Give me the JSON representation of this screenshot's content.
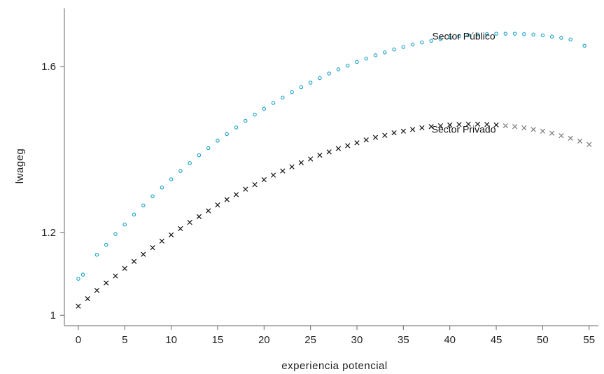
{
  "chart_data": {
    "type": "scatter",
    "title": "",
    "xlabel": "experiencia potencial",
    "ylabel": "lwageg",
    "xlim": [
      -1.5,
      56
    ],
    "ylim": [
      0.975,
      1.74
    ],
    "xticks": [
      0,
      5,
      10,
      15,
      20,
      25,
      30,
      35,
      40,
      45,
      50,
      55
    ],
    "yticks": [
      1,
      1.2,
      1.6
    ],
    "ytick_labels": [
      "1",
      "1.2",
      "1.6"
    ],
    "grid": false,
    "legend": "none",
    "annotations": [
      {
        "text": "Sector Público",
        "x": 41.5,
        "y": 1.665
      },
      {
        "text": "Sector Privado",
        "x": 41.5,
        "y": 1.44
      }
    ],
    "series": [
      {
        "marker": "circle",
        "color": "#1aa3c8",
        "x": [
          0,
          0.5,
          2,
          3,
          4,
          5,
          6,
          7,
          8,
          9,
          10,
          11,
          12,
          13,
          14,
          15,
          16,
          17,
          18,
          19,
          20,
          21,
          22,
          23,
          24,
          25,
          26,
          27,
          28,
          29,
          30,
          31,
          32,
          33,
          34,
          35,
          36,
          37,
          38,
          39,
          40,
          41,
          42,
          43,
          44,
          45,
          46,
          47,
          48,
          49,
          50,
          51,
          52,
          53,
          54.5
        ],
        "y": [
          1.088,
          1.098,
          1.146,
          1.17,
          1.196,
          1.219,
          1.243,
          1.265,
          1.287,
          1.308,
          1.328,
          1.348,
          1.367,
          1.386,
          1.403,
          1.421,
          1.437,
          1.453,
          1.469,
          1.484,
          1.498,
          1.512,
          1.525,
          1.538,
          1.55,
          1.561,
          1.572,
          1.583,
          1.593,
          1.602,
          1.611,
          1.619,
          1.627,
          1.634,
          1.641,
          1.647,
          1.653,
          1.658,
          1.662,
          1.666,
          1.67,
          1.673,
          1.675,
          1.677,
          1.678,
          1.679,
          1.679,
          1.679,
          1.678,
          1.677,
          1.675,
          1.672,
          1.669,
          1.665,
          1.65
        ]
      },
      {
        "marker": "x",
        "color": "#111111",
        "x": [
          0,
          1,
          2,
          3,
          4,
          5,
          6,
          7,
          8,
          9,
          10,
          11,
          12,
          13,
          14,
          15,
          16,
          17,
          18,
          19,
          20,
          21,
          22,
          23,
          24,
          25,
          26,
          27,
          28,
          29,
          30,
          31,
          32,
          33,
          34,
          35,
          36,
          37,
          38,
          39,
          40,
          41,
          42,
          43,
          44,
          45,
          46,
          47,
          48,
          49,
          50,
          51,
          52,
          53,
          54,
          55
        ],
        "y": [
          1.022,
          1.04,
          1.06,
          1.078,
          1.095,
          1.113,
          1.13,
          1.147,
          1.163,
          1.179,
          1.194,
          1.209,
          1.224,
          1.238,
          1.252,
          1.266,
          1.279,
          1.291,
          1.304,
          1.315,
          1.327,
          1.338,
          1.348,
          1.358,
          1.368,
          1.377,
          1.386,
          1.394,
          1.402,
          1.409,
          1.416,
          1.423,
          1.429,
          1.434,
          1.44,
          1.444,
          1.448,
          1.452,
          1.455,
          1.457,
          1.459,
          1.46,
          1.461,
          1.461,
          1.46,
          1.459,
          1.457,
          1.455,
          1.452,
          1.448,
          1.444,
          1.439,
          1.433,
          1.427,
          1.42,
          1.412
        ]
      }
    ]
  }
}
